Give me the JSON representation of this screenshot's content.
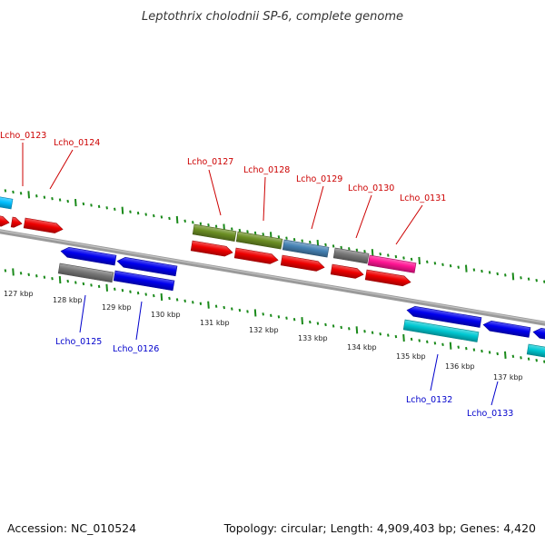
{
  "title": "Leptothrix cholodnii SP-6, complete genome",
  "footer": {
    "accession": "Accession: NC_010524",
    "topology": "Topology: circular; Length: 4,909,403 bp; Genes: 4,420"
  },
  "colors": {
    "forward_label": "#cc0000",
    "reverse_label": "#0000cc",
    "backbone": "#8a8a8a",
    "tick": "#1a8a1a",
    "cds_red": "#ee0000",
    "blue": "#0000ee",
    "gray": "#777777",
    "olive": "#6b8e23",
    "steelblue": "#4682b4",
    "magenta": "#ff1493",
    "cyan": "#00c8d2",
    "skyblue": "#00bfff"
  },
  "kbp_labels": [
    "127 kbp",
    "128 kbp",
    "129 kbp",
    "130 kbp",
    "131 kbp",
    "132 kbp",
    "133 kbp",
    "134 kbp",
    "135 kbp",
    "136 kbp",
    "137 kbp"
  ],
  "gene_labels": [
    {
      "text": "Lcho_0123",
      "strand": "forward"
    },
    {
      "text": "Lcho_0124",
      "strand": "forward"
    },
    {
      "text": "Lcho_0125",
      "strand": "reverse"
    },
    {
      "text": "Lcho_0126",
      "strand": "reverse"
    },
    {
      "text": "Lcho_0127",
      "strand": "forward"
    },
    {
      "text": "Lcho_0128",
      "strand": "forward"
    },
    {
      "text": "Lcho_0129",
      "strand": "forward"
    },
    {
      "text": "Lcho_0130",
      "strand": "forward"
    },
    {
      "text": "Lcho_0131",
      "strand": "forward"
    },
    {
      "text": "Lcho_0132",
      "strand": "reverse"
    },
    {
      "text": "Lcho_0133",
      "strand": "reverse"
    }
  ]
}
